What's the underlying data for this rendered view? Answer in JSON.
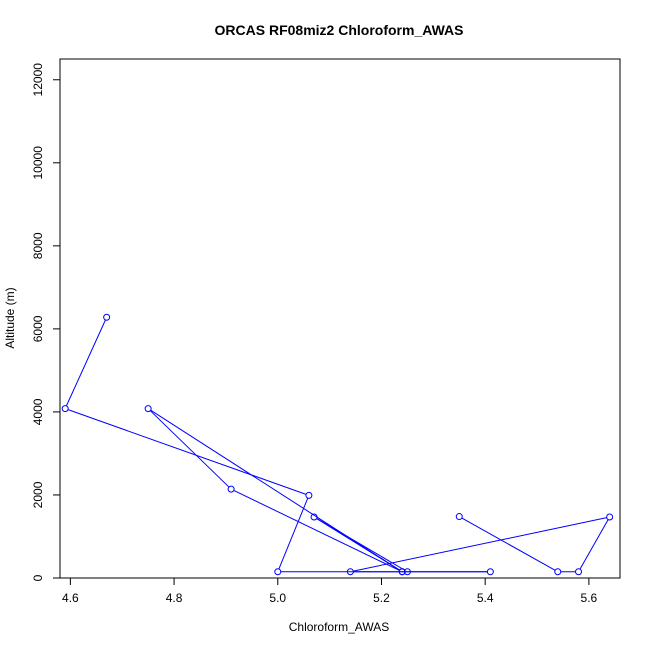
{
  "chart_data": {
    "type": "line",
    "title": "ORCAS RF08miz2 Chloroform_AWAS",
    "xlabel": "Chloroform_AWAS",
    "ylabel": "Altitude (m)",
    "xlim": [
      4.58,
      5.66
    ],
    "ylim": [
      0,
      12500
    ],
    "x_ticks": [
      4.6,
      4.8,
      5.0,
      5.2,
      5.4,
      5.6
    ],
    "x_tick_labels": [
      "4.6",
      "4.8",
      "5.0",
      "5.2",
      "5.4",
      "5.6"
    ],
    "y_ticks": [
      0,
      2000,
      4000,
      6000,
      8000,
      10000,
      12000
    ],
    "y_tick_labels": [
      "0",
      "2000",
      "4000",
      "6000",
      "8000",
      "10000",
      "12000"
    ],
    "grid": false,
    "series": [
      {
        "color": "#0000ff",
        "marker": "open-circle",
        "x": [
          4.67,
          4.59,
          5.06,
          5.0,
          5.41,
          5.24,
          4.75,
          4.91,
          5.24,
          5.07,
          5.25,
          5.14,
          5.64,
          5.58,
          5.54,
          5.35
        ],
        "y": [
          6280,
          4080,
          1990,
          150,
          150,
          150,
          4080,
          2140,
          150,
          1470,
          150,
          150,
          1470,
          150,
          150,
          1480
        ]
      }
    ]
  }
}
